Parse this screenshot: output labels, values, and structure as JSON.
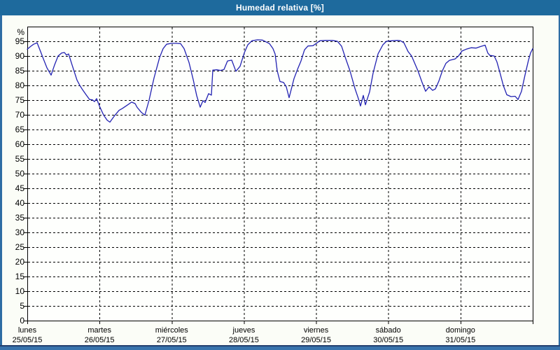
{
  "window": {
    "title": "Humedad relativa [%]"
  },
  "colors": {
    "titlebar_bg": "#1e6a9d",
    "title_text": "#ffffff",
    "frame_side": "#2e6da4",
    "frame_bottom_dark": "#23406e",
    "frame_bottom_light": "#3873ac",
    "plot_bg": "#fefffd",
    "grid": "#000000",
    "axis": "#000000",
    "line": "#2222b2",
    "label_text": "#000000"
  },
  "chart_data": {
    "type": "line",
    "title": "Humedad relativa [%]",
    "ylabel": "%",
    "ylim": [
      0,
      100
    ],
    "ytick_step": 5,
    "ytick_labels": [
      "95",
      "90",
      "85",
      "80",
      "75",
      "70",
      "65",
      "60",
      "55",
      "50",
      "45",
      "40",
      "35",
      "30",
      "25",
      "20",
      "15",
      "10",
      "5",
      "0"
    ],
    "grid": "dashed",
    "legend": "none",
    "x_categories": [
      {
        "name": "lunes",
        "date": "25/05/15"
      },
      {
        "name": "martes",
        "date": "26/05/15"
      },
      {
        "name": "miércoles",
        "date": "27/05/15"
      },
      {
        "name": "jueves",
        "date": "28/05/15"
      },
      {
        "name": "viernes",
        "date": "29/05/15"
      },
      {
        "name": "sábado",
        "date": "30/05/15"
      },
      {
        "name": "domingo",
        "date": "31/05/15"
      }
    ],
    "x_unit": "day (0 = start of lunes 25/05/15, 7 = end of domingo 31/05/15)",
    "series": [
      {
        "name": "Humedad relativa",
        "color": "#2222b2",
        "points": [
          [
            0.0,
            92.3
          ],
          [
            0.048,
            93.3
          ],
          [
            0.087,
            94.0
          ],
          [
            0.136,
            94.5
          ],
          [
            0.184,
            91.5
          ],
          [
            0.223,
            89.0
          ],
          [
            0.271,
            86.0
          ],
          [
            0.33,
            83.5
          ],
          [
            0.378,
            87.0
          ],
          [
            0.427,
            90.0
          ],
          [
            0.475,
            91.0
          ],
          [
            0.514,
            91.2
          ],
          [
            0.543,
            90.3
          ],
          [
            0.572,
            90.7
          ],
          [
            0.62,
            87.0
          ],
          [
            0.659,
            84.0
          ],
          [
            0.688,
            81.8
          ],
          [
            0.727,
            80.0
          ],
          [
            0.766,
            78.5
          ],
          [
            0.814,
            76.8
          ],
          [
            0.863,
            75.2
          ],
          [
            0.902,
            75.1
          ],
          [
            0.931,
            74.5
          ],
          [
            0.96,
            75.5
          ],
          [
            0.999,
            73.0
          ],
          [
            1.057,
            69.9
          ],
          [
            1.105,
            68.2
          ],
          [
            1.144,
            67.5
          ],
          [
            1.202,
            69.5
          ],
          [
            1.27,
            71.5
          ],
          [
            1.319,
            72.2
          ],
          [
            1.386,
            73.3
          ],
          [
            1.445,
            74.3
          ],
          [
            1.493,
            73.8
          ],
          [
            1.522,
            72.5
          ],
          [
            1.58,
            70.8
          ],
          [
            1.629,
            69.9
          ],
          [
            1.687,
            75.0
          ],
          [
            1.755,
            82.5
          ],
          [
            1.832,
            89.5
          ],
          [
            1.881,
            92.5
          ],
          [
            1.929,
            94.0
          ],
          [
            1.997,
            94.3
          ],
          [
            2.065,
            94.3
          ],
          [
            2.123,
            94.2
          ],
          [
            2.172,
            92.5
          ],
          [
            2.24,
            87.8
          ],
          [
            2.298,
            82.0
          ],
          [
            2.346,
            76.5
          ],
          [
            2.395,
            72.6
          ],
          [
            2.434,
            74.8
          ],
          [
            2.463,
            74.2
          ],
          [
            2.511,
            77.2
          ],
          [
            2.55,
            76.7
          ],
          [
            2.569,
            85.2
          ],
          [
            2.627,
            85.3
          ],
          [
            2.676,
            85.1
          ],
          [
            2.724,
            85.4
          ],
          [
            2.773,
            88.3
          ],
          [
            2.831,
            88.6
          ],
          [
            2.889,
            84.8
          ],
          [
            2.947,
            86.5
          ],
          [
            3.005,
            91.0
          ],
          [
            3.054,
            93.8
          ],
          [
            3.112,
            95.2
          ],
          [
            3.19,
            95.5
          ],
          [
            3.258,
            95.4
          ],
          [
            3.306,
            94.8
          ],
          [
            3.355,
            94.2
          ],
          [
            3.403,
            92.5
          ],
          [
            3.432,
            90.7
          ],
          [
            3.461,
            85.0
          ],
          [
            3.5,
            81.3
          ],
          [
            3.549,
            81.0
          ],
          [
            3.587,
            79.5
          ],
          [
            3.626,
            75.8
          ],
          [
            3.665,
            79.5
          ],
          [
            3.694,
            82.3
          ],
          [
            3.743,
            85.5
          ],
          [
            3.791,
            88.3
          ],
          [
            3.839,
            92.1
          ],
          [
            3.888,
            93.4
          ],
          [
            3.956,
            93.5
          ],
          [
            4.004,
            94.3
          ],
          [
            4.053,
            95.2
          ],
          [
            4.13,
            95.3
          ],
          [
            4.227,
            95.3
          ],
          [
            4.295,
            95.0
          ],
          [
            4.353,
            93.3
          ],
          [
            4.402,
            89.7
          ],
          [
            4.469,
            85.0
          ],
          [
            4.537,
            79.0
          ],
          [
            4.586,
            75.5
          ],
          [
            4.615,
            73.0
          ],
          [
            4.654,
            76.6
          ],
          [
            4.683,
            73.4
          ],
          [
            4.741,
            77.8
          ],
          [
            4.789,
            84.2
          ],
          [
            4.857,
            90.7
          ],
          [
            4.925,
            93.8
          ],
          [
            4.974,
            95.0
          ],
          [
            5.051,
            95.2
          ],
          [
            5.129,
            95.3
          ],
          [
            5.167,
            95.2
          ],
          [
            5.216,
            94.5
          ],
          [
            5.274,
            91.5
          ],
          [
            5.323,
            90.0
          ],
          [
            5.41,
            85.0
          ],
          [
            5.468,
            81.0
          ],
          [
            5.517,
            78.0
          ],
          [
            5.565,
            79.5
          ],
          [
            5.614,
            78.3
          ],
          [
            5.652,
            78.8
          ],
          [
            5.701,
            81.5
          ],
          [
            5.749,
            85.0
          ],
          [
            5.798,
            87.5
          ],
          [
            5.846,
            88.5
          ],
          [
            5.924,
            89.0
          ],
          [
            5.972,
            90.0
          ],
          [
            6.021,
            91.7
          ],
          [
            6.079,
            92.3
          ],
          [
            6.147,
            92.8
          ],
          [
            6.215,
            92.7
          ],
          [
            6.273,
            93.2
          ],
          [
            6.341,
            93.7
          ],
          [
            6.379,
            91.0
          ],
          [
            6.408,
            90.2
          ],
          [
            6.467,
            90.0
          ],
          [
            6.505,
            88.0
          ],
          [
            6.544,
            84.5
          ],
          [
            6.593,
            80.0
          ],
          [
            6.641,
            76.8
          ],
          [
            6.699,
            76.2
          ],
          [
            6.757,
            76.3
          ],
          [
            6.796,
            75.2
          ],
          [
            6.845,
            78.0
          ],
          [
            6.893,
            83.5
          ],
          [
            6.941,
            88.5
          ],
          [
            6.97,
            91.0
          ],
          [
            7.0,
            92.5
          ]
        ]
      }
    ]
  }
}
